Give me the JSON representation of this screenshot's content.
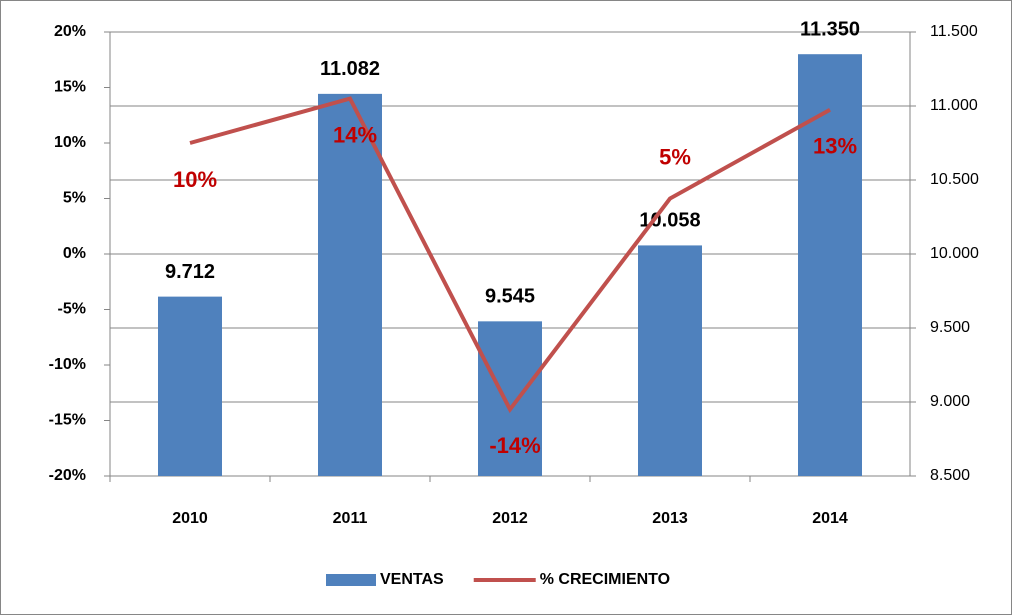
{
  "chart_data": {
    "type": "combo",
    "categories": [
      "2010",
      "2011",
      "2012",
      "2013",
      "2014"
    ],
    "series": [
      {
        "name": "VENTAS",
        "type": "bar",
        "axis": "y2",
        "color": "#4f81bd",
        "values": [
          9712,
          11082,
          9545,
          10058,
          11350
        ],
        "value_labels": [
          "9.712",
          "11.082",
          "9.545",
          "10.058",
          "11.350"
        ]
      },
      {
        "name": "% CRECIMIENTO",
        "type": "line",
        "axis": "y",
        "color": "#c0504d",
        "values": [
          10,
          14,
          -14,
          5,
          13
        ],
        "value_labels": [
          "10%",
          "14%",
          "-14%",
          "5%",
          "13%"
        ]
      }
    ],
    "ylim": [
      -20,
      20
    ],
    "yticks": [
      {
        "value": 20,
        "label": "20%"
      },
      {
        "value": 15,
        "label": "15%"
      },
      {
        "value": 10,
        "label": "10%"
      },
      {
        "value": 5,
        "label": "5%"
      },
      {
        "value": 0,
        "label": "0%"
      },
      {
        "value": -5,
        "label": "-5%"
      },
      {
        "value": -10,
        "label": "-10%"
      },
      {
        "value": -15,
        "label": "-15%"
      },
      {
        "value": -20,
        "label": "-20%"
      }
    ],
    "y2lim": [
      8500,
      11500
    ],
    "y2ticks": [
      {
        "value": 11500,
        "label": "11.500"
      },
      {
        "value": 11000,
        "label": "11.000"
      },
      {
        "value": 10500,
        "label": "10.500"
      },
      {
        "value": 10000,
        "label": "10.000"
      },
      {
        "value": 9500,
        "label": "9.500"
      },
      {
        "value": 9000,
        "label": "9.000"
      },
      {
        "value": 8500,
        "label": "8.500"
      }
    ],
    "grid": true,
    "legend": "bottom"
  }
}
